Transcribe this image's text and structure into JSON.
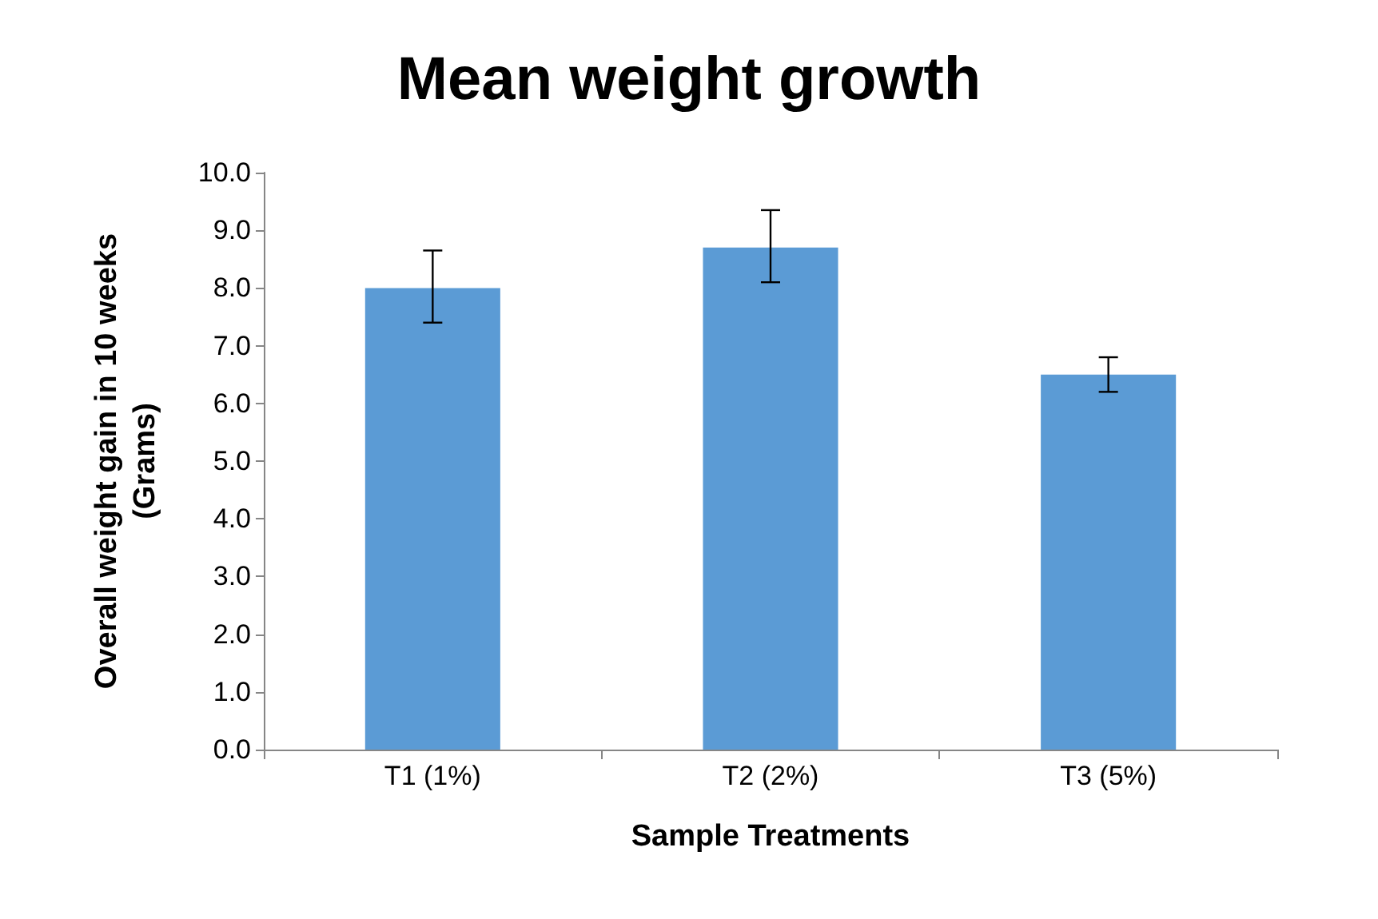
{
  "chart_data": {
    "type": "bar",
    "title": "Mean weight growth",
    "xlabel": "Sample Treatments",
    "ylabel": "Overall weight gain in 10 weeks\n(Grams)",
    "categories": [
      "T1 (1%)",
      "T2 (2%)",
      "T3 (5%)"
    ],
    "values": [
      8.0,
      8.7,
      6.5
    ],
    "errors": [
      [
        7.4,
        8.65
      ],
      [
        8.1,
        9.35
      ],
      [
        6.2,
        6.8
      ]
    ],
    "color": "#5b9bd5",
    "ylim": [
      0,
      10
    ],
    "yticks": [
      {
        "value": 0,
        "label": "0.0"
      },
      {
        "value": 1,
        "label": "1.0"
      },
      {
        "value": 2,
        "label": "2.0"
      },
      {
        "value": 3,
        "label": "3.0"
      },
      {
        "value": 4,
        "label": "4.0"
      },
      {
        "value": 5,
        "label": "5.0"
      },
      {
        "value": 6,
        "label": "6.0"
      },
      {
        "value": 7,
        "label": "7.0"
      },
      {
        "value": 8,
        "label": "8.0"
      },
      {
        "value": 9,
        "label": "9.0"
      },
      {
        "value": 10,
        "label": "10.0"
      }
    ],
    "grid": false
  }
}
